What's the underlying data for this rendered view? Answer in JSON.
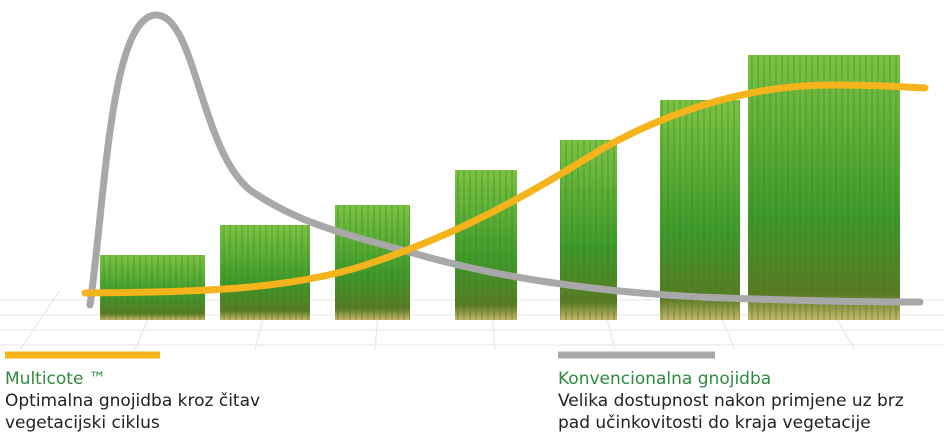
{
  "legend": [
    {
      "label": "Multicote ™",
      "description": [
        "Optimalna gnojidba kroz čitav",
        "vegetacijski ciklus"
      ]
    },
    {
      "label": "Konvencionalna gnojidba",
      "description": [
        "Velika dostupnost nakon primjene uz brz",
        "pad učinkovitosti do kraja vegetacije"
      ]
    }
  ]
}
